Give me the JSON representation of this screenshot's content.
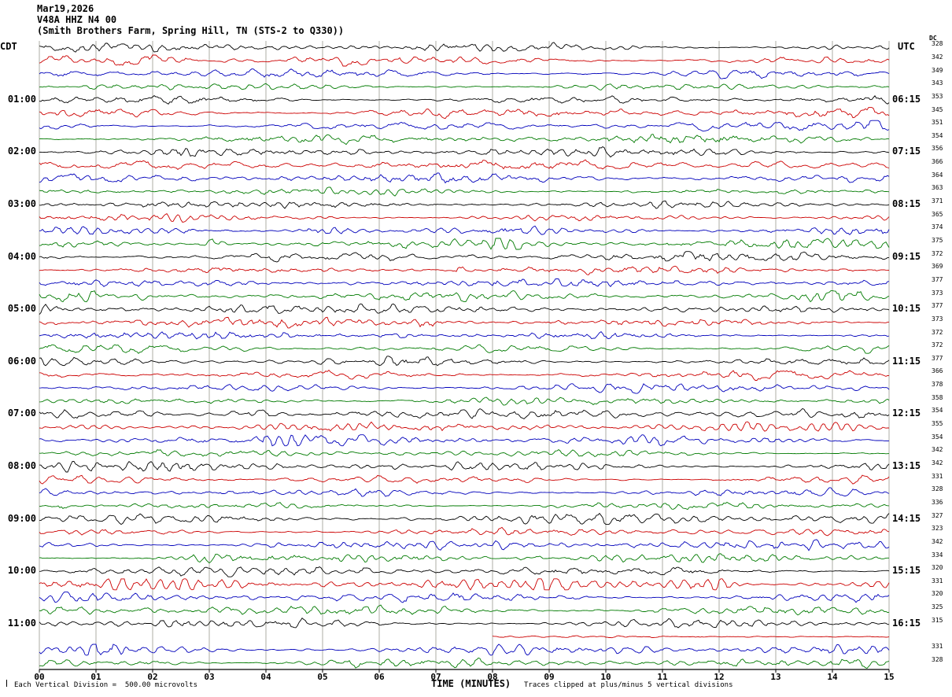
{
  "header": {
    "date_line": "Mar19,2026",
    "station_line": "V48A HHZ N4 00",
    "location_line": "(Smith Brothers Farm, Spring Hill, TN (STS-2 to Q330))"
  },
  "axes": {
    "left_tz_label": "CDT",
    "right_tz_label": "UTC",
    "dc_header": "DC",
    "x_axis_title": "TIME (MINUTES)",
    "minute_labels": [
      "00",
      "01",
      "02",
      "03",
      "04",
      "05",
      "06",
      "07",
      "08",
      "09",
      "10",
      "11",
      "12",
      "13",
      "14",
      "15"
    ]
  },
  "footer": {
    "scale_note": "Each Vertical Division =  500.00 microvolts",
    "clip_note": "Traces clipped at plus/minus 5 vertical divisions"
  },
  "colors": {
    "black": "#000000",
    "red": "#cc0000",
    "blue": "#0000bb",
    "green": "#007a00",
    "grid": "#9a9a8f",
    "axis": "#000000"
  },
  "chart_data": {
    "type": "line",
    "subtype": "helicorder-seismogram",
    "x_range_minutes": [
      0,
      15
    ],
    "row_duration_minutes": 15,
    "row_count": 48,
    "color_cycle": [
      "black",
      "red",
      "blue",
      "green"
    ],
    "rows": [
      {
        "t": "00:00",
        "color": "black",
        "dc": 328
      },
      {
        "t": "00:15",
        "color": "red",
        "dc": 342
      },
      {
        "t": "00:30",
        "color": "blue",
        "dc": 349
      },
      {
        "t": "00:45",
        "color": "green",
        "dc": 343
      },
      {
        "t": "01:00",
        "color": "black",
        "dc": 353,
        "left": "01:00",
        "right": "06:15"
      },
      {
        "t": "01:15",
        "color": "red",
        "dc": 345
      },
      {
        "t": "01:30",
        "color": "blue",
        "dc": 351
      },
      {
        "t": "01:45",
        "color": "green",
        "dc": 354
      },
      {
        "t": "02:00",
        "color": "black",
        "dc": 356,
        "left": "02:00",
        "right": "07:15"
      },
      {
        "t": "02:15",
        "color": "red",
        "dc": 366
      },
      {
        "t": "02:30",
        "color": "blue",
        "dc": 364
      },
      {
        "t": "02:45",
        "color": "green",
        "dc": 363
      },
      {
        "t": "03:00",
        "color": "black",
        "dc": 371,
        "left": "03:00",
        "right": "08:15"
      },
      {
        "t": "03:15",
        "color": "red",
        "dc": 365
      },
      {
        "t": "03:30",
        "color": "blue",
        "dc": 374
      },
      {
        "t": "03:45",
        "color": "green",
        "dc": 375
      },
      {
        "t": "04:00",
        "color": "black",
        "dc": 372,
        "left": "04:00",
        "right": "09:15"
      },
      {
        "t": "04:15",
        "color": "red",
        "dc": 369
      },
      {
        "t": "04:30",
        "color": "blue",
        "dc": 377
      },
      {
        "t": "04:45",
        "color": "green",
        "dc": 373
      },
      {
        "t": "05:00",
        "color": "black",
        "dc": 377,
        "left": "05:00",
        "right": "10:15"
      },
      {
        "t": "05:15",
        "color": "red",
        "dc": 373
      },
      {
        "t": "05:30",
        "color": "blue",
        "dc": 372
      },
      {
        "t": "05:45",
        "color": "green",
        "dc": 372
      },
      {
        "t": "06:00",
        "color": "black",
        "dc": 377,
        "left": "06:00",
        "right": "11:15"
      },
      {
        "t": "06:15",
        "color": "red",
        "dc": 366
      },
      {
        "t": "06:30",
        "color": "blue",
        "dc": 378
      },
      {
        "t": "06:45",
        "color": "green",
        "dc": 358
      },
      {
        "t": "07:00",
        "color": "black",
        "dc": 354,
        "left": "07:00",
        "right": "12:15"
      },
      {
        "t": "07:15",
        "color": "red",
        "dc": 355
      },
      {
        "t": "07:30",
        "color": "blue",
        "dc": 354
      },
      {
        "t": "07:45",
        "color": "green",
        "dc": 342
      },
      {
        "t": "08:00",
        "color": "black",
        "dc": 342,
        "left": "08:00",
        "right": "13:15"
      },
      {
        "t": "08:15",
        "color": "red",
        "dc": 331
      },
      {
        "t": "08:30",
        "color": "blue",
        "dc": 328
      },
      {
        "t": "08:45",
        "color": "green",
        "dc": 336
      },
      {
        "t": "09:00",
        "color": "black",
        "dc": 327,
        "left": "09:00",
        "right": "14:15"
      },
      {
        "t": "09:15",
        "color": "red",
        "dc": 323
      },
      {
        "t": "09:30",
        "color": "blue",
        "dc": 342
      },
      {
        "t": "09:45",
        "color": "green",
        "dc": 334
      },
      {
        "t": "10:00",
        "color": "black",
        "dc": 320,
        "left": "10:00",
        "right": "15:15"
      },
      {
        "t": "10:15",
        "color": "red",
        "dc": 331
      },
      {
        "t": "10:30",
        "color": "blue",
        "dc": 320
      },
      {
        "t": "10:45",
        "color": "green",
        "dc": 325
      },
      {
        "t": "11:00",
        "color": "black",
        "dc": 315,
        "left": "11:00",
        "right": "16:15"
      },
      {
        "t": "11:15",
        "color": "red",
        "dc": null,
        "start_min": 8,
        "amp": 0.35
      },
      {
        "t": "11:30",
        "color": "blue",
        "dc": 331
      },
      {
        "t": "11:45",
        "color": "green",
        "dc": 328
      }
    ]
  }
}
